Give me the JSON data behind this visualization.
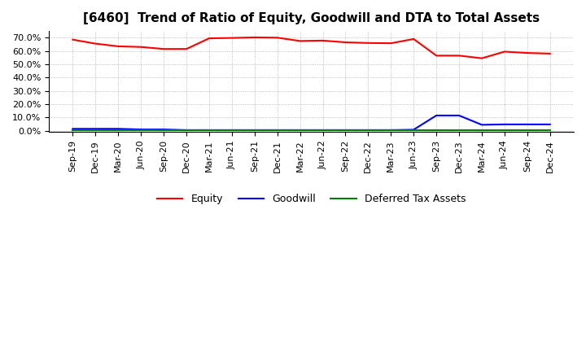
{
  "title": "[6460]  Trend of Ratio of Equity, Goodwill and DTA to Total Assets",
  "x_labels": [
    "Sep-19",
    "Dec-19",
    "Mar-20",
    "Jun-20",
    "Sep-20",
    "Dec-20",
    "Mar-21",
    "Jun-21",
    "Sep-21",
    "Dec-21",
    "Mar-22",
    "Jun-22",
    "Sep-22",
    "Dec-22",
    "Mar-23",
    "Jun-23",
    "Sep-23",
    "Dec-23",
    "Mar-24",
    "Jun-24",
    "Sep-24",
    "Dec-24"
  ],
  "equity": [
    68.5,
    65.5,
    63.5,
    63.0,
    61.5,
    61.5,
    69.5,
    69.8,
    70.2,
    70.0,
    67.5,
    67.8,
    66.5,
    66.0,
    65.8,
    69.0,
    56.5,
    56.5,
    54.5,
    59.5,
    58.5,
    58.0
  ],
  "goodwill": [
    1.5,
    1.5,
    1.5,
    1.0,
    1.0,
    0.5,
    0.5,
    0.5,
    0.5,
    0.5,
    0.5,
    0.5,
    0.5,
    0.5,
    0.5,
    0.8,
    11.5,
    11.5,
    4.5,
    4.8,
    4.8,
    4.8
  ],
  "dta": [
    0.3,
    0.3,
    0.3,
    0.3,
    0.3,
    0.3,
    0.3,
    0.3,
    0.3,
    0.3,
    0.3,
    0.3,
    0.3,
    0.3,
    0.3,
    0.3,
    0.3,
    0.3,
    0.3,
    0.3,
    0.3,
    0.3
  ],
  "equity_color": "#FF0000",
  "goodwill_color": "#0000FF",
  "dta_color": "#008000",
  "ylim": [
    -1,
    75
  ],
  "yticks": [
    0,
    10,
    20,
    30,
    40,
    50,
    60,
    70
  ],
  "legend_labels": [
    "Equity",
    "Goodwill",
    "Deferred Tax Assets"
  ],
  "title_fontsize": 11,
  "tick_fontsize": 8,
  "bg_color": "#FFFFFF",
  "grid_color": "#AAAAAA"
}
